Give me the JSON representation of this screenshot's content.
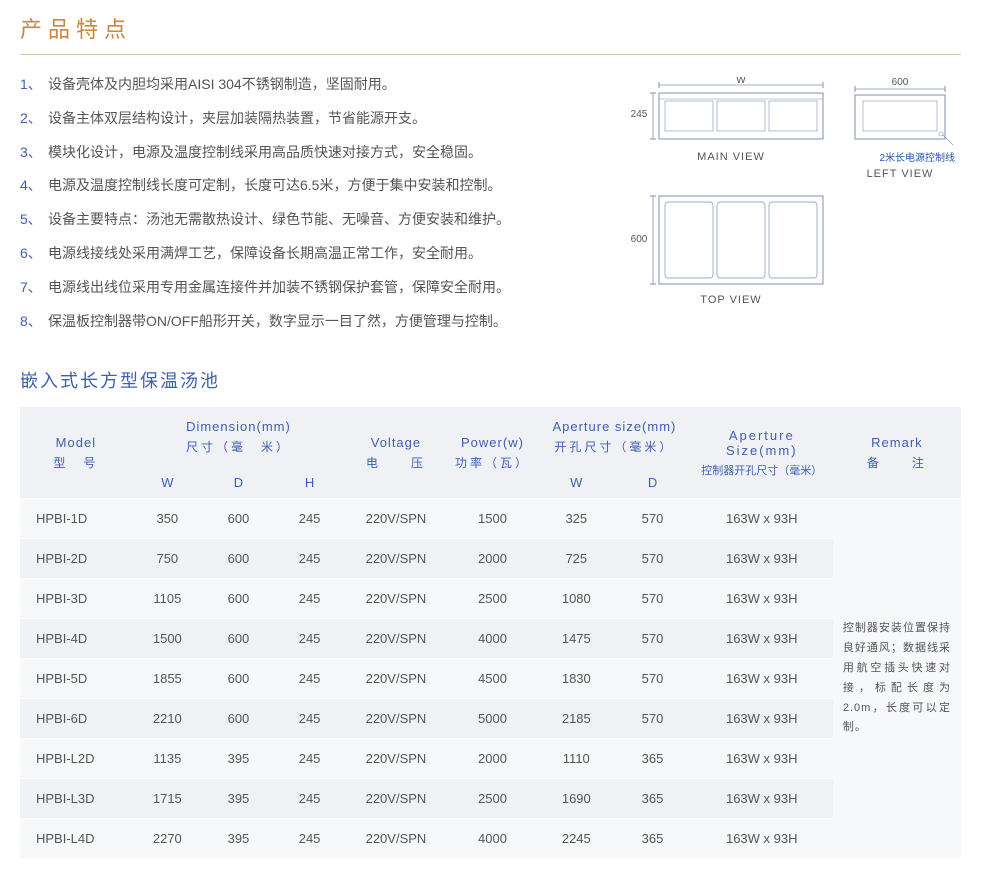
{
  "section_title": "产品特点",
  "features": [
    {
      "n": "1、",
      "t": "设备壳体及内胆均采用AISI 304不锈钢制造，坚固耐用。"
    },
    {
      "n": "2、",
      "t": "设备主体双层结构设计，夹层加装隔热装置，节省能源开支。"
    },
    {
      "n": "3、",
      "t": "模块化设计，电源及温度控制线采用高品质快速对接方式，安全稳固。"
    },
    {
      "n": "4、",
      "t": "电源及温度控制线长度可定制，长度可达6.5米，方便于集中安装和控制。"
    },
    {
      "n": "5、",
      "t": "设备主要特点：汤池无需散热设计、绿色节能、无噪音、方便安装和维护。"
    },
    {
      "n": "6、",
      "t": "电源线接线处采用满焊工艺，保障设备长期高温正常工作，安全耐用。"
    },
    {
      "n": "7、",
      "t": "电源线出线位采用专用金属连接件并加装不锈钢保护套管，保障安全耐用。"
    },
    {
      "n": "8、",
      "t": "保温板控制器带ON/OFF船形开关，数字显示一目了然，方便管理与控制。"
    }
  ],
  "diagrams": {
    "main_view": {
      "label": "MAIN VIEW",
      "w_label": "W",
      "h_label": "245"
    },
    "left_view": {
      "label": "LEFT VIEW",
      "top_dim": "600",
      "note": "2米长电源控制线"
    },
    "top_view": {
      "label": "TOP VIEW",
      "h_label": "600"
    },
    "stroke": "#8090b0",
    "stroke_width": 1
  },
  "subtitle": "嵌入式长方型保温汤池",
  "table": {
    "headers": {
      "model": {
        "en": "Model",
        "cn": "型　号"
      },
      "dim": {
        "en": "Dimension(mm)",
        "cn": "尺寸（毫　米）",
        "sub": [
          "W",
          "D",
          "H"
        ]
      },
      "voltage": {
        "en": "Voltage",
        "cn": "电　　压"
      },
      "power": {
        "en": "Power(w)",
        "cn": "功率（瓦）"
      },
      "aperture": {
        "en": "Aperture size(mm)",
        "cn": "开孔尺寸（毫米）",
        "sub": [
          "W",
          "D"
        ]
      },
      "ctrl": {
        "en": "Aperture Size(mm)",
        "cn": "控制器开孔尺寸（毫米）"
      },
      "remark": {
        "en": "Remark",
        "cn": "备　　注"
      }
    },
    "remark_text": "控制器安装位置保持良好通风；数据线采用航空插头快速对接，标配长度为2.0m，长度可以定制。",
    "rows": [
      {
        "model": "HPBI-1D",
        "w": "350",
        "d": "600",
        "h": "245",
        "v": "220V/SPN",
        "p": "1500",
        "aw": "325",
        "ad": "570",
        "cs": "163W x 93H"
      },
      {
        "model": "HPBI-2D",
        "w": "750",
        "d": "600",
        "h": "245",
        "v": "220V/SPN",
        "p": "2000",
        "aw": "725",
        "ad": "570",
        "cs": "163W x 93H"
      },
      {
        "model": "HPBI-3D",
        "w": "1105",
        "d": "600",
        "h": "245",
        "v": "220V/SPN",
        "p": "2500",
        "aw": "1080",
        "ad": "570",
        "cs": "163W x 93H"
      },
      {
        "model": "HPBI-4D",
        "w": "1500",
        "d": "600",
        "h": "245",
        "v": "220V/SPN",
        "p": "4000",
        "aw": "1475",
        "ad": "570",
        "cs": "163W x 93H"
      },
      {
        "model": "HPBI-5D",
        "w": "1855",
        "d": "600",
        "h": "245",
        "v": "220V/SPN",
        "p": "4500",
        "aw": "1830",
        "ad": "570",
        "cs": "163W x 93H"
      },
      {
        "model": "HPBI-6D",
        "w": "2210",
        "d": "600",
        "h": "245",
        "v": "220V/SPN",
        "p": "5000",
        "aw": "2185",
        "ad": "570",
        "cs": "163W x 93H"
      },
      {
        "model": "HPBI-L2D",
        "w": "1135",
        "d": "395",
        "h": "245",
        "v": "220V/SPN",
        "p": "2000",
        "aw": "1110",
        "ad": "365",
        "cs": "163W x 93H"
      },
      {
        "model": "HPBI-L3D",
        "w": "1715",
        "d": "395",
        "h": "245",
        "v": "220V/SPN",
        "p": "2500",
        "aw": "1690",
        "ad": "365",
        "cs": "163W x 93H"
      },
      {
        "model": "HPBI-L4D",
        "w": "2270",
        "d": "395",
        "h": "245",
        "v": "220V/SPN",
        "p": "4000",
        "aw": "2245",
        "ad": "365",
        "cs": "163W x 93H"
      }
    ]
  },
  "colors": {
    "accent_gold": "#c68a3a",
    "accent_blue": "#3f5fb0",
    "header_bg": "#eff1f5",
    "row_odd": "#f7f8fa",
    "row_even": "#eff1f5",
    "text": "#555555"
  }
}
